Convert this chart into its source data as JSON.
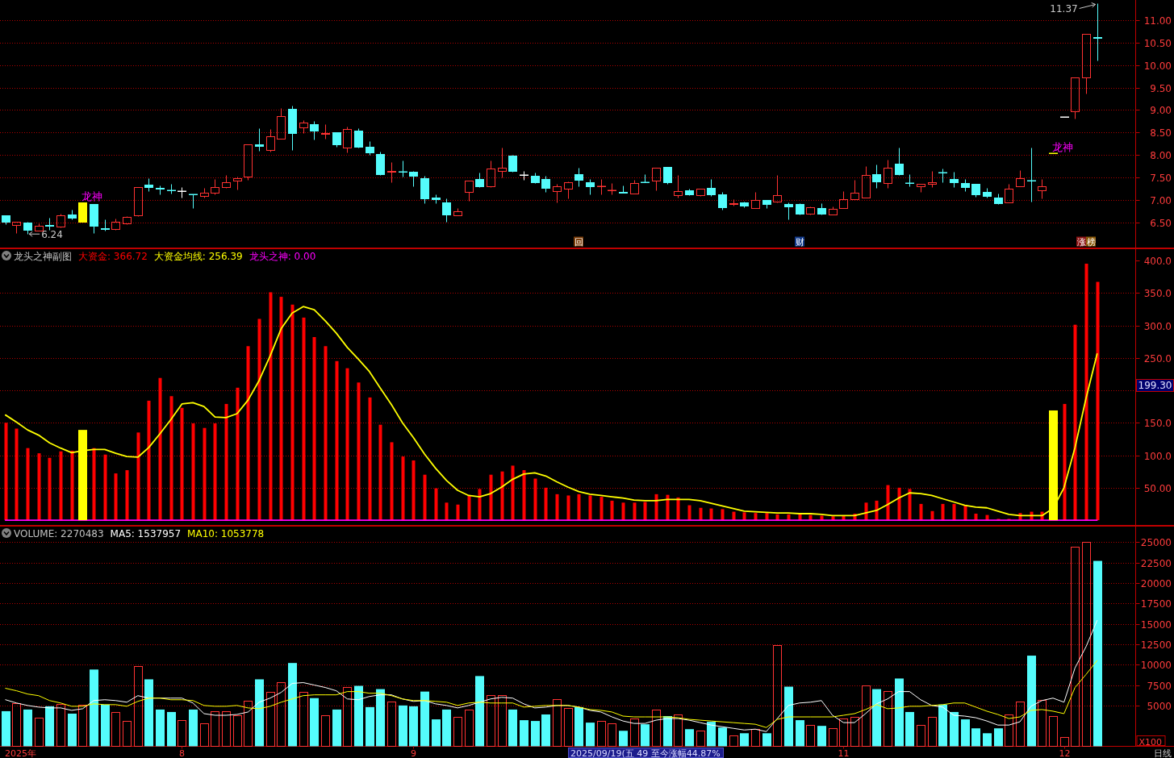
{
  "chart_data": [
    {
      "type": "candlestick",
      "categories": [
        null,
        null,
        null,
        null,
        null,
        null,
        null,
        null,
        null,
        null,
        null,
        null,
        null,
        null,
        null,
        null,
        null,
        null,
        null,
        null,
        null,
        null,
        null,
        null,
        null,
        null,
        null,
        null,
        null,
        null,
        null,
        null,
        null,
        null,
        null,
        null,
        null,
        null,
        null,
        null,
        null,
        null,
        null,
        null,
        null,
        null,
        null,
        null,
        null,
        null,
        null,
        null,
        null,
        null,
        null,
        null,
        null,
        null,
        null,
        null,
        null,
        null,
        null,
        null,
        null,
        null,
        null,
        null,
        null,
        null,
        null,
        null,
        null,
        null,
        null,
        null,
        null,
        null,
        null,
        null,
        null,
        null,
        null,
        null,
        null,
        null,
        null,
        null,
        null,
        null,
        null,
        null,
        null,
        null,
        null,
        null,
        null,
        null,
        null,
        null,
        null,
        null,
        null
      ],
      "tick_labels": "y",
      "ylim": [
        5.93,
        11.45
      ],
      "yticks": [
        {
          "value": 6.5,
          "label": "6.50"
        },
        {
          "value": 7,
          "label": "7.00"
        },
        {
          "value": 7.5,
          "label": "7.50"
        },
        {
          "value": 8,
          "label": "8.00"
        },
        {
          "value": 8.5,
          "label": "8.50"
        },
        {
          "value": 9,
          "label": "9.00"
        },
        {
          "value": 9.5,
          "label": "9.50"
        },
        {
          "value": 10,
          "label": "10.00"
        },
        {
          "value": 10.5,
          "label": "10.50"
        },
        {
          "value": 11,
          "label": "11.00"
        }
      ],
      "grid": "y",
      "color": "#ff3232",
      "colors": [
        "#54fcfc",
        "#ff3232",
        "#54fcfc",
        "#ff3232",
        "#54fcfc",
        "#ff3232",
        "#54fcfc",
        "#ffff00",
        "#54fcfc",
        "#54fcfc",
        "#ff3232",
        "#ff3232",
        "#ff3232",
        "#54fcfc",
        "#54fcfc",
        "#54fcfc",
        "#ffffff",
        "#54fcfc",
        "#ff3232",
        "#ff3232",
        "#ff3232",
        "#ff3232",
        "#ff3232",
        "#54fcfc",
        "#ff3232",
        "#ff3232",
        "#54fcfc",
        "#ff3232",
        "#54fcfc",
        "#ff3232",
        "#54fcfc",
        "#ff3232",
        "#54fcfc",
        "#54fcfc",
        "#54fcfc",
        "#ff3232",
        "#54fcfc",
        "#54fcfc",
        "#54fcfc",
        "#54fcfc",
        "#54fcfc",
        "#ff3232",
        "#ff3232",
        "#54fcfc",
        "#ff3232",
        "#ff3232",
        "#54fcfc",
        "#ffffff",
        "#54fcfc",
        "#54fcfc",
        "#ff3232",
        "#ff3232",
        "#54fcfc",
        "#54fcfc",
        "#ff3232",
        "#ff3232",
        "#54fcfc",
        "#ff3232",
        "#54fcfc",
        "#ff3232",
        "#54fcfc",
        "#ff3232",
        "#54fcfc",
        "#ff3232",
        "#54fcfc",
        "#54fcfc",
        "#ff3232",
        "#54fcfc",
        "#ff3232",
        "#54fcfc",
        "#ff3232",
        "#54fcfc",
        "#54fcfc",
        "#ff3232",
        "#54fcfc",
        "#ff3232",
        "#ff3232",
        "#ff3232",
        "#ff3232",
        "#54fcfc",
        "#ff3232",
        "#54fcfc",
        "#54fcfc",
        "#ff3232",
        "#ff3232",
        "#54fcfc",
        "#54fcfc",
        "#54fcfc",
        "#54fcfc",
        "#54fcfc",
        "#54fcfc",
        "#ff3232",
        "#ff3232",
        "#54fcfc",
        "#ff3232",
        "#ffff00",
        "#ffffff",
        "#ff3232",
        "#ff3232",
        "#54fcfc",
        null,
        null,
        null
      ],
      "ohlc": [
        [
          6.66,
          6.66,
          6.46,
          6.51
        ],
        [
          6.45,
          6.52,
          6.26,
          6.52
        ],
        [
          6.49,
          6.51,
          6.24,
          6.33
        ],
        [
          6.32,
          6.48,
          6.32,
          6.43
        ],
        [
          6.44,
          6.61,
          6.34,
          6.43
        ],
        [
          6.4,
          6.69,
          6.39,
          6.66
        ],
        [
          6.67,
          6.79,
          6.57,
          6.6
        ],
        [
          6.52,
          6.95,
          6.52,
          6.95
        ],
        [
          6.9,
          6.9,
          6.26,
          6.42
        ],
        [
          6.37,
          6.57,
          6.31,
          6.36
        ],
        [
          6.35,
          6.59,
          6.33,
          6.52
        ],
        [
          6.48,
          6.64,
          6.46,
          6.63
        ],
        [
          6.66,
          7.29,
          6.64,
          7.29
        ],
        [
          7.34,
          7.49,
          7.19,
          7.28
        ],
        [
          7.26,
          7.33,
          7.12,
          7.25
        ],
        [
          7.22,
          7.36,
          7.14,
          7.21
        ],
        [
          7.19,
          7.29,
          7.06,
          7.19
        ],
        [
          7.13,
          7.13,
          6.81,
          7.13
        ],
        [
          7.09,
          7.27,
          7.05,
          7.16
        ],
        [
          7.16,
          7.46,
          7.12,
          7.29
        ],
        [
          7.28,
          7.56,
          7.26,
          7.4
        ],
        [
          7.43,
          7.52,
          7.24,
          7.49
        ],
        [
          7.52,
          8.24,
          7.45,
          8.24
        ],
        [
          8.24,
          8.6,
          8.09,
          8.2
        ],
        [
          8.11,
          8.58,
          8.07,
          8.42
        ],
        [
          8.36,
          9.05,
          8.36,
          8.87
        ],
        [
          9.02,
          9.09,
          8.11,
          8.48
        ],
        [
          8.61,
          8.78,
          8.48,
          8.72
        ],
        [
          8.69,
          8.75,
          8.35,
          8.55
        ],
        [
          8.47,
          8.68,
          8.37,
          8.48
        ],
        [
          8.51,
          8.51,
          8.19,
          8.23
        ],
        [
          8.16,
          8.63,
          8.05,
          8.58
        ],
        [
          8.55,
          8.6,
          8.16,
          8.19
        ],
        [
          8.19,
          8.3,
          8.01,
          8.05
        ],
        [
          8.03,
          8.07,
          7.56,
          7.58
        ],
        [
          7.63,
          7.85,
          7.4,
          7.64
        ],
        [
          7.63,
          7.87,
          7.51,
          7.62
        ],
        [
          7.62,
          7.65,
          7.3,
          7.53
        ],
        [
          7.49,
          7.54,
          6.92,
          7.03
        ],
        [
          7.06,
          7.12,
          6.92,
          7.01
        ],
        [
          6.95,
          7.04,
          6.51,
          6.67
        ],
        [
          6.66,
          6.81,
          6.66,
          6.75
        ],
        [
          7.18,
          7.43,
          6.98,
          7.43
        ],
        [
          7.46,
          7.6,
          7.28,
          7.31
        ],
        [
          7.3,
          7.87,
          7.28,
          7.69
        ],
        [
          7.64,
          8.16,
          7.5,
          7.71
        ],
        [
          7.99,
          8.0,
          7.62,
          7.64
        ],
        [
          7.55,
          7.65,
          7.44,
          7.55
        ],
        [
          7.53,
          7.6,
          7.38,
          7.4
        ],
        [
          7.47,
          7.54,
          7.17,
          7.26
        ],
        [
          7.19,
          7.35,
          6.95,
          7.31
        ],
        [
          7.25,
          7.41,
          7.04,
          7.4
        ],
        [
          7.58,
          7.71,
          7.31,
          7.44
        ],
        [
          7.4,
          7.47,
          7.12,
          7.3
        ],
        [
          7.3,
          7.47,
          7.12,
          7.31
        ],
        [
          7.21,
          7.38,
          7.13,
          7.22
        ],
        [
          7.18,
          7.33,
          7.16,
          7.16
        ],
        [
          7.14,
          7.45,
          7.14,
          7.38
        ],
        [
          7.4,
          7.58,
          7.39,
          7.39
        ],
        [
          7.43,
          7.72,
          7.21,
          7.72
        ],
        [
          7.73,
          7.74,
          7.35,
          7.4
        ],
        [
          7.1,
          7.56,
          7.05,
          7.2
        ],
        [
          7.22,
          7.25,
          7.1,
          7.12
        ],
        [
          7.1,
          7.25,
          7.09,
          7.25
        ],
        [
          7.26,
          7.46,
          7.08,
          7.12
        ],
        [
          7.12,
          7.17,
          6.78,
          6.83
        ],
        [
          6.91,
          7.01,
          6.88,
          6.92
        ],
        [
          6.94,
          6.97,
          6.83,
          6.88
        ],
        [
          6.82,
          7.17,
          6.82,
          7.0
        ],
        [
          7.0,
          7.0,
          6.81,
          6.9
        ],
        [
          6.96,
          7.56,
          6.94,
          7.11
        ],
        [
          6.91,
          6.94,
          6.57,
          6.85
        ],
        [
          6.91,
          6.93,
          6.67,
          6.7
        ],
        [
          6.69,
          6.86,
          6.67,
          6.84
        ],
        [
          6.82,
          6.93,
          6.67,
          6.69
        ],
        [
          6.67,
          6.86,
          6.67,
          6.8
        ],
        [
          6.82,
          7.19,
          6.82,
          7.02
        ],
        [
          7.02,
          7.44,
          7.02,
          7.16
        ],
        [
          7.05,
          7.76,
          7.05,
          7.56
        ],
        [
          7.58,
          7.78,
          7.26,
          7.41
        ],
        [
          7.37,
          7.9,
          7.26,
          7.72
        ],
        [
          7.81,
          8.17,
          7.55,
          7.57
        ],
        [
          7.38,
          7.58,
          7.31,
          7.37
        ],
        [
          7.3,
          7.36,
          7.18,
          7.35
        ],
        [
          7.35,
          7.64,
          7.29,
          7.39
        ],
        [
          7.61,
          7.69,
          7.4,
          7.6
        ],
        [
          7.47,
          7.62,
          7.28,
          7.4
        ],
        [
          7.38,
          7.47,
          7.19,
          7.28
        ],
        [
          7.35,
          7.36,
          7.07,
          7.12
        ],
        [
          7.17,
          7.26,
          7.06,
          7.08
        ],
        [
          7.06,
          7.15,
          6.9,
          6.92
        ],
        [
          6.95,
          7.35,
          6.95,
          7.25
        ],
        [
          7.31,
          7.67,
          7.31,
          7.49
        ],
        [
          7.43,
          8.16,
          6.96,
          7.42
        ],
        [
          7.22,
          7.46,
          7.03,
          7.31
        ],
        [
          8.04,
          8.04,
          8.04,
          8.04
        ],
        [
          8.84,
          8.84,
          8.84,
          8.84
        ],
        [
          8.97,
          9.72,
          8.82,
          9.72
        ],
        [
          9.72,
          10.69,
          9.36,
          10.69
        ],
        [
          10.62,
          11.37,
          10.11,
          10.61
        ],
        null,
        null,
        null
      ],
      "annotations": [
        "11.37",
        "6.24",
        "龙神",
        "龙神",
        "回",
        "财",
        "涨榜"
      ]
    },
    {
      "type": "bar",
      "title": "龙头之神副图",
      "categories": [
        null,
        null,
        null,
        null,
        null,
        null,
        null,
        null,
        null,
        null,
        null,
        null,
        null,
        null,
        null,
        null,
        null,
        null,
        null,
        null,
        null,
        null,
        null,
        null,
        null,
        null,
        null,
        null,
        null,
        null,
        null,
        null,
        null,
        null,
        null,
        null,
        null,
        null,
        null,
        null,
        null,
        null,
        null,
        null,
        null,
        null,
        null,
        null,
        null,
        null,
        null,
        null,
        null,
        null,
        null,
        null,
        null,
        null,
        null,
        null,
        null,
        null,
        null,
        null,
        null,
        null,
        null,
        null,
        null,
        null,
        null,
        null,
        null,
        null,
        null,
        null,
        null,
        null,
        null,
        null,
        null,
        null,
        null,
        null,
        null,
        null,
        null,
        null,
        null,
        null,
        null,
        null,
        null,
        null,
        null,
        null,
        null,
        null,
        null,
        null,
        null,
        null,
        null
      ],
      "tick_labels": "y",
      "ylim": [
        -8,
        418
      ],
      "yticks": [
        {
          "value": 50,
          "label": "50.00"
        },
        {
          "value": 100,
          "label": "100.0"
        },
        {
          "value": 150,
          "label": "150.0"
        },
        {
          "value": 200,
          "label": null
        },
        {
          "value": 250,
          "label": "250.0"
        },
        {
          "value": 300,
          "label": "300.0"
        },
        {
          "value": 350,
          "label": "350.0"
        },
        {
          "value": 400,
          "label": "400.0"
        }
      ],
      "grid": "y",
      "legend": "top left",
      "series": [
        {
          "name": "大资金: 366.72",
          "color": "#ff0000",
          "values": [
            150,
            141,
            111,
            103,
            96,
            106,
            107,
            null,
            111,
            101,
            72,
            77,
            135,
            184,
            219,
            191,
            173,
            149,
            142,
            149,
            179,
            204,
            268,
            310,
            351,
            344,
            332,
            312,
            282,
            268,
            245,
            234,
            212,
            189,
            147,
            120,
            98,
            92,
            70,
            49,
            27,
            24,
            38,
            48,
            70,
            75,
            84,
            77,
            64,
            50,
            40,
            38,
            40,
            38,
            36,
            30,
            27,
            27,
            28,
            40,
            39,
            35,
            23,
            19,
            18,
            17,
            13,
            12,
            11,
            11,
            9,
            9,
            9,
            8,
            7,
            6,
            7,
            10,
            27,
            30,
            54,
            50,
            48,
            25,
            14,
            25,
            25,
            23,
            10,
            8,
            2,
            2,
            11,
            13,
            13,
            null,
            179,
            301,
            395,
            367,
            null,
            null,
            null
          ]
        },
        {
          "name": "大资金均线: 256.39",
          "type": "line",
          "color": "#ffff00",
          "values": [
            162,
            151,
            139,
            131,
            119,
            111,
            104,
            107,
            109,
            109,
            103,
            98,
            97,
            112,
            133,
            155,
            179,
            181,
            175,
            159,
            158,
            164,
            185,
            215,
            253,
            295,
            319,
            329,
            324,
            307,
            288,
            266,
            248,
            229,
            203,
            178,
            150,
            127,
            102,
            80,
            61,
            46,
            38,
            36,
            41,
            51,
            63,
            71,
            73,
            68,
            59,
            51,
            44,
            40,
            38,
            36,
            34,
            31,
            30,
            30,
            32,
            32,
            32,
            30,
            26,
            22,
            18,
            14,
            13,
            12,
            11,
            11,
            10,
            10,
            9,
            7,
            7,
            7,
            11,
            15,
            24,
            34,
            42,
            41,
            38,
            33,
            28,
            23,
            20,
            19,
            14,
            9,
            7,
            7,
            7,
            18,
            50,
            112,
            188,
            256,
            null,
            null,
            null
          ]
        },
        {
          "name": "龙头之神: 0.00",
          "type": "line",
          "color": "#ff00ff",
          "values": [
            0,
            0,
            0,
            0,
            0,
            0,
            0,
            0,
            0,
            0,
            0,
            0,
            0,
            0,
            0,
            0,
            0,
            0,
            0,
            0,
            0,
            0,
            0,
            0,
            0,
            0,
            0,
            0,
            0,
            0,
            0,
            0,
            0,
            0,
            0,
            0,
            0,
            0,
            0,
            0,
            0,
            0,
            0,
            0,
            0,
            0,
            0,
            0,
            0,
            0,
            0,
            0,
            0,
            0,
            0,
            0,
            0,
            0,
            0,
            0,
            0,
            0,
            0,
            0,
            0,
            0,
            0,
            0,
            0,
            0,
            0,
            0,
            0,
            0,
            0,
            0,
            0,
            0,
            0,
            0,
            0,
            0,
            0,
            0,
            0,
            0,
            0,
            0,
            0,
            0,
            0,
            0,
            0,
            0,
            0,
            0,
            0,
            0,
            0,
            0,
            null,
            null,
            null
          ]
        },
        {
          "color": "#ffff00",
          "values": [
            null,
            null,
            null,
            null,
            null,
            null,
            null,
            139,
            null,
            null,
            null,
            null,
            null,
            null,
            null,
            null,
            null,
            null,
            null,
            null,
            null,
            null,
            null,
            null,
            null,
            null,
            null,
            null,
            null,
            null,
            null,
            null,
            null,
            null,
            null,
            null,
            null,
            null,
            null,
            null,
            null,
            null,
            null,
            null,
            null,
            null,
            null,
            null,
            null,
            null,
            null,
            null,
            null,
            null,
            null,
            null,
            null,
            null,
            null,
            null,
            null,
            null,
            null,
            null,
            null,
            null,
            null,
            null,
            null,
            null,
            null,
            null,
            null,
            null,
            null,
            null,
            null,
            null,
            null,
            null,
            null,
            null,
            null,
            null,
            null,
            null,
            null,
            null,
            null,
            null,
            null,
            null,
            null,
            null,
            null,
            169,
            null,
            null,
            null,
            null,
            null,
            null,
            null
          ]
        }
      ],
      "annotations": [
        "199.30"
      ]
    },
    {
      "type": "bar",
      "title": "VOLUME: 2270483",
      "categories": [
        null,
        null,
        null,
        null,
        null,
        null,
        null,
        null,
        null,
        null,
        null,
        null,
        null,
        null,
        null,
        null,
        "8",
        null,
        null,
        null,
        null,
        null,
        null,
        null,
        null,
        null,
        null,
        null,
        null,
        null,
        null,
        null,
        null,
        null,
        null,
        null,
        null,
        "9",
        null,
        null,
        null,
        null,
        null,
        null,
        null,
        null,
        null,
        null,
        null,
        null,
        null,
        null,
        null,
        null,
        null,
        null,
        null,
        null,
        null,
        null,
        null,
        null,
        null,
        null,
        null,
        null,
        null,
        null,
        null,
        null,
        null,
        null,
        null,
        null,
        null,
        null,
        "11",
        null,
        null,
        null,
        null,
        null,
        null,
        null,
        null,
        null,
        null,
        null,
        null,
        null,
        null,
        null,
        null,
        null,
        null,
        null,
        "12",
        null,
        null,
        null,
        null,
        null,
        null
      ],
      "ylim": [
        0,
        26950
      ],
      "yticks": [
        5000,
        7500,
        10000,
        12500,
        15000,
        17500,
        20000,
        22500,
        25000
      ],
      "grid": "y",
      "legend": "top left",
      "series": [
        {
          "color": "#ff3232",
          "colors": [
            "#54fcfc",
            "#ff3232",
            "#54fcfc",
            "#ff3232",
            "#54fcfc",
            "#ff3232",
            "#54fcfc",
            "#ff3232",
            "#54fcfc",
            "#54fcfc",
            "#ff3232",
            "#ff3232",
            "#ff3232",
            "#54fcfc",
            "#54fcfc",
            "#54fcfc",
            "#ff3232",
            "#54fcfc",
            "#ff3232",
            "#ff3232",
            "#ff3232",
            "#ff3232",
            "#ff3232",
            "#54fcfc",
            "#ff3232",
            "#ff3232",
            "#54fcfc",
            "#ff3232",
            "#54fcfc",
            "#ff3232",
            "#54fcfc",
            "#ff3232",
            "#54fcfc",
            "#54fcfc",
            "#54fcfc",
            "#ff3232",
            "#54fcfc",
            "#54fcfc",
            "#54fcfc",
            "#54fcfc",
            "#54fcfc",
            "#ff3232",
            "#ff3232",
            "#54fcfc",
            "#ff3232",
            "#ff3232",
            "#54fcfc",
            "#54fcfc",
            "#54fcfc",
            "#54fcfc",
            "#ff3232",
            "#ff3232",
            "#54fcfc",
            "#54fcfc",
            "#ff3232",
            "#ff3232",
            "#54fcfc",
            "#ff3232",
            "#54fcfc",
            "#ff3232",
            "#54fcfc",
            "#ff3232",
            "#54fcfc",
            "#ff3232",
            "#54fcfc",
            "#54fcfc",
            "#ff3232",
            "#54fcfc",
            "#ff3232",
            "#54fcfc",
            "#ff3232",
            "#54fcfc",
            "#54fcfc",
            "#ff3232",
            "#54fcfc",
            "#ff3232",
            "#ff3232",
            "#ff3232",
            "#ff3232",
            "#54fcfc",
            "#ff3232",
            "#54fcfc",
            "#54fcfc",
            "#ff3232",
            "#ff3232",
            "#54fcfc",
            "#54fcfc",
            "#54fcfc",
            "#54fcfc",
            "#54fcfc",
            "#54fcfc",
            "#ff3232",
            "#ff3232",
            "#54fcfc",
            "#ff3232",
            "#ff3232",
            "#ff3232",
            "#ff3232",
            "#ff3232",
            "#54fcfc",
            null,
            null,
            null
          ],
          "values": [
            4300,
            5300,
            4500,
            3500,
            4900,
            5200,
            4000,
            5100,
            9400,
            5100,
            4200,
            3100,
            9800,
            8200,
            4500,
            4200,
            3200,
            4500,
            2800,
            4300,
            4300,
            3800,
            5600,
            8200,
            6700,
            7800,
            10200,
            6700,
            5900,
            3800,
            4500,
            7300,
            7400,
            4800,
            7000,
            5500,
            5000,
            4900,
            6700,
            3300,
            4500,
            3600,
            4500,
            8600,
            6300,
            6300,
            4500,
            3200,
            3100,
            3900,
            5800,
            4700,
            4800,
            2900,
            3100,
            2800,
            1900,
            3400,
            2700,
            4500,
            3700,
            3900,
            2100,
            1900,
            3000,
            2300,
            1300,
            1600,
            2100,
            1600,
            12400,
            7300,
            3200,
            2600,
            2500,
            2200,
            3400,
            3600,
            7500,
            7000,
            6800,
            8300,
            4200,
            2600,
            3600,
            5100,
            4200,
            3300,
            2200,
            1600,
            2200,
            3900,
            5500,
            11100,
            5700,
            3700,
            1100,
            24400,
            25000,
            22700,
            null,
            null,
            null
          ]
        },
        {
          "name": "MA5: 1537957",
          "type": "line",
          "color": "#ffffff",
          "values": [
            5700,
            5300,
            5000,
            4800,
            4700,
            4700,
            4400,
            4600,
            5600,
            5700,
            5600,
            5400,
            6200,
            5900,
            5900,
            5900,
            5900,
            5300,
            4000,
            3800,
            3800,
            3900,
            4200,
            5400,
            5900,
            6600,
            7700,
            7800,
            7500,
            7200,
            6800,
            5800,
            5700,
            6100,
            6300,
            6300,
            5800,
            5500,
            5600,
            5200,
            5000,
            4700,
            5000,
            5400,
            5800,
            6000,
            5900,
            5200,
            4700,
            4800,
            5000,
            5000,
            4800,
            4400,
            4200,
            3600,
            3100,
            2800,
            2800,
            3200,
            3400,
            3400,
            3200,
            2900,
            2600,
            2400,
            2200,
            2000,
            2100,
            1800,
            3400,
            5000,
            5300,
            5400,
            5600,
            3800,
            2900,
            2900,
            4000,
            5200,
            5800,
            6700,
            6700,
            5700,
            5000,
            4800,
            3800,
            3700,
            3500,
            3100,
            2600,
            2600,
            3000,
            4900,
            5600,
            5900,
            5400,
            9600,
            12200,
            15400,
            null,
            null,
            null
          ]
        },
        {
          "name": "MA10: 1053778",
          "type": "line",
          "color": "#ffff00",
          "values": [
            7100,
            6800,
            6400,
            6200,
            5600,
            5300,
            4900,
            4900,
            5200,
            5100,
            5100,
            4900,
            5500,
            5900,
            5900,
            5700,
            5700,
            5600,
            5000,
            4900,
            4900,
            5000,
            4700,
            4600,
            4900,
            5400,
            5800,
            6200,
            6300,
            6300,
            6300,
            6700,
            6700,
            6500,
            6500,
            6200,
            5800,
            5600,
            5600,
            5500,
            5400,
            5000,
            5300,
            5400,
            5300,
            5300,
            5300,
            4800,
            4900,
            5000,
            5000,
            5000,
            4800,
            4500,
            4400,
            4200,
            3700,
            3600,
            3600,
            3600,
            3600,
            3500,
            3300,
            3200,
            3100,
            3000,
            2900,
            2800,
            2700,
            2300,
            3300,
            3600,
            3600,
            3600,
            3600,
            3600,
            3800,
            4000,
            4500,
            5100,
            4600,
            4700,
            4900,
            4900,
            5000,
            5100,
            5300,
            5300,
            4800,
            4300,
            3900,
            3400,
            3600,
            4400,
            4500,
            4300,
            4000,
            7200,
            8800,
            10500,
            null,
            null,
            null
          ]
        }
      ],
      "annotations": [
        "2025年",
        "2025/09/19(五 49 至今涨幅44.87%",
        "X100",
        "日线"
      ]
    }
  ]
}
